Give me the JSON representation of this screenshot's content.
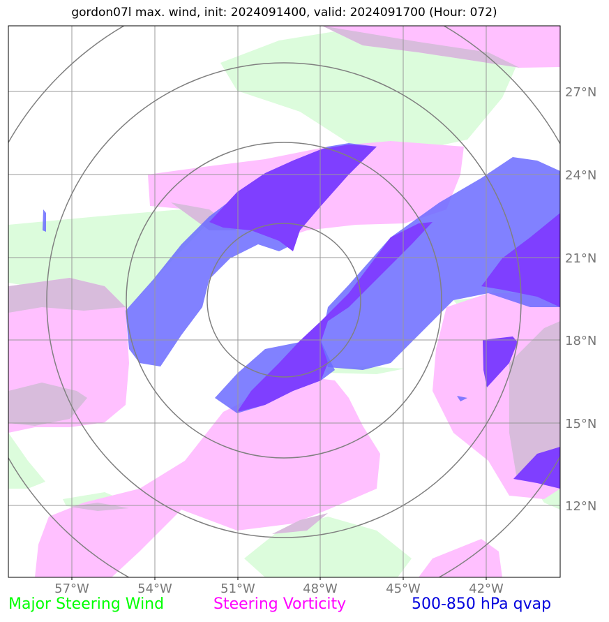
{
  "title": "gordon07l max. wind, init: 2024091400, valid: 2024091700 (Hour: 072)",
  "lon_labels": [
    "57°W",
    "54°W",
    "51°W",
    "48°W",
    "45°W",
    "42°W"
  ],
  "lat_labels": [
    "27°N",
    "24°N",
    "21°N",
    "18°N",
    "15°N",
    "12°N"
  ],
  "legend": {
    "wind": {
      "label": "Major Steering Wind",
      "color": "#00ff00"
    },
    "vorticity": {
      "label": "Steering Vorticity",
      "color": "#ff00ff"
    },
    "qvap": {
      "label": "500-850 hPa qvap",
      "color": "#0000dd"
    }
  },
  "layer_colors": {
    "wind": "#dcfcdc",
    "vorticity": "#ffc0ff",
    "qvap": "#6b6bff",
    "qvap_strong": "#7f3fff",
    "overlap": "#d8bcdc"
  }
}
